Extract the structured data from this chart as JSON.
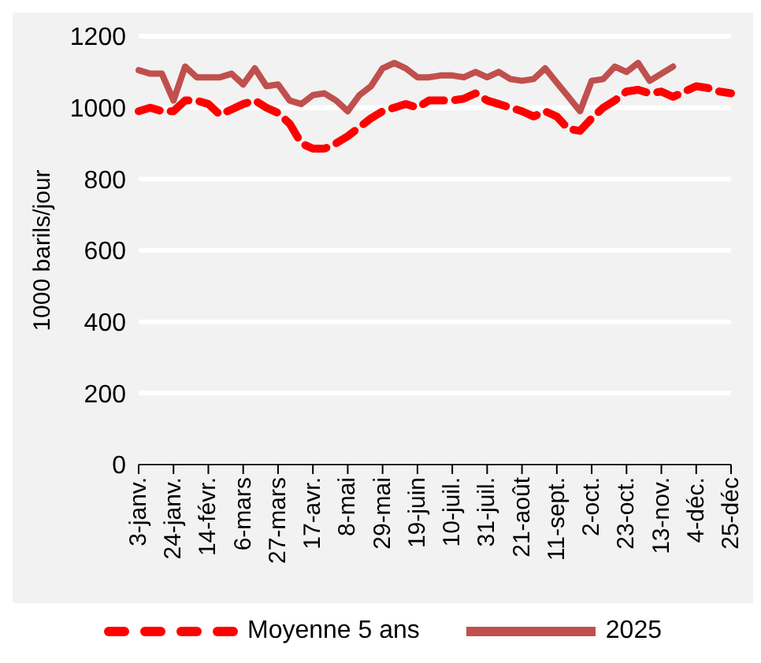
{
  "chart_data": {
    "type": "line",
    "ylabel": "1000 barils/jour",
    "categories": [
      "3-janv.",
      null,
      null,
      "24-janv.",
      null,
      null,
      "14-févr.",
      null,
      null,
      "6-mars",
      null,
      null,
      "27-mars",
      null,
      null,
      "17-avr.",
      null,
      null,
      "8-mai",
      null,
      null,
      "29-mai",
      null,
      null,
      "19-juin",
      null,
      null,
      "10-juil.",
      null,
      null,
      "31-juil.",
      null,
      null,
      "21-août",
      null,
      null,
      "11-sept.",
      null,
      null,
      "2-oct.",
      null,
      null,
      "23-oct.",
      null,
      null,
      "13-nov.",
      null,
      null,
      "4-déc.",
      null,
      null,
      "25-déc"
    ],
    "series": [
      {
        "name": "Moyenne 5 ans",
        "color": "#ff0000",
        "line_style": "dashed",
        "values": [
          990,
          1000,
          990,
          990,
          1020,
          1020,
          1010,
          980,
          995,
          1010,
          1020,
          1000,
          985,
          955,
          900,
          885,
          885,
          900,
          920,
          945,
          970,
          990,
          1000,
          1010,
          1000,
          1020,
          1020,
          1020,
          1025,
          1040,
          1020,
          1010,
          1000,
          990,
          975,
          990,
          975,
          940,
          935,
          970,
          1000,
          1020,
          1045,
          1050,
          1040,
          1045,
          1030,
          1045,
          1060,
          1055,
          1045,
          1040
        ]
      },
      {
        "name": "2025",
        "color": "#c0504d",
        "line_style": "solid",
        "values": [
          1105,
          1095,
          1095,
          1020,
          1115,
          1085,
          1085,
          1085,
          1095,
          1065,
          1110,
          1060,
          1065,
          1020,
          1010,
          1035,
          1040,
          1020,
          990,
          1035,
          1060,
          1110,
          1125,
          1110,
          1085,
          1085,
          1090,
          1090,
          1085,
          1100,
          1085,
          1100,
          1080,
          1075,
          1080,
          1110,
          1070,
          1030,
          990,
          1075,
          1080,
          1115,
          1100,
          1125,
          1075,
          1095,
          1115,
          null,
          null,
          null,
          null,
          null
        ]
      }
    ],
    "ylim": [
      0,
      1200
    ],
    "yticks": [
      0,
      200,
      400,
      600,
      800,
      1000,
      1200
    ],
    "grid": "y",
    "legend": "bottom",
    "marker": "none"
  }
}
